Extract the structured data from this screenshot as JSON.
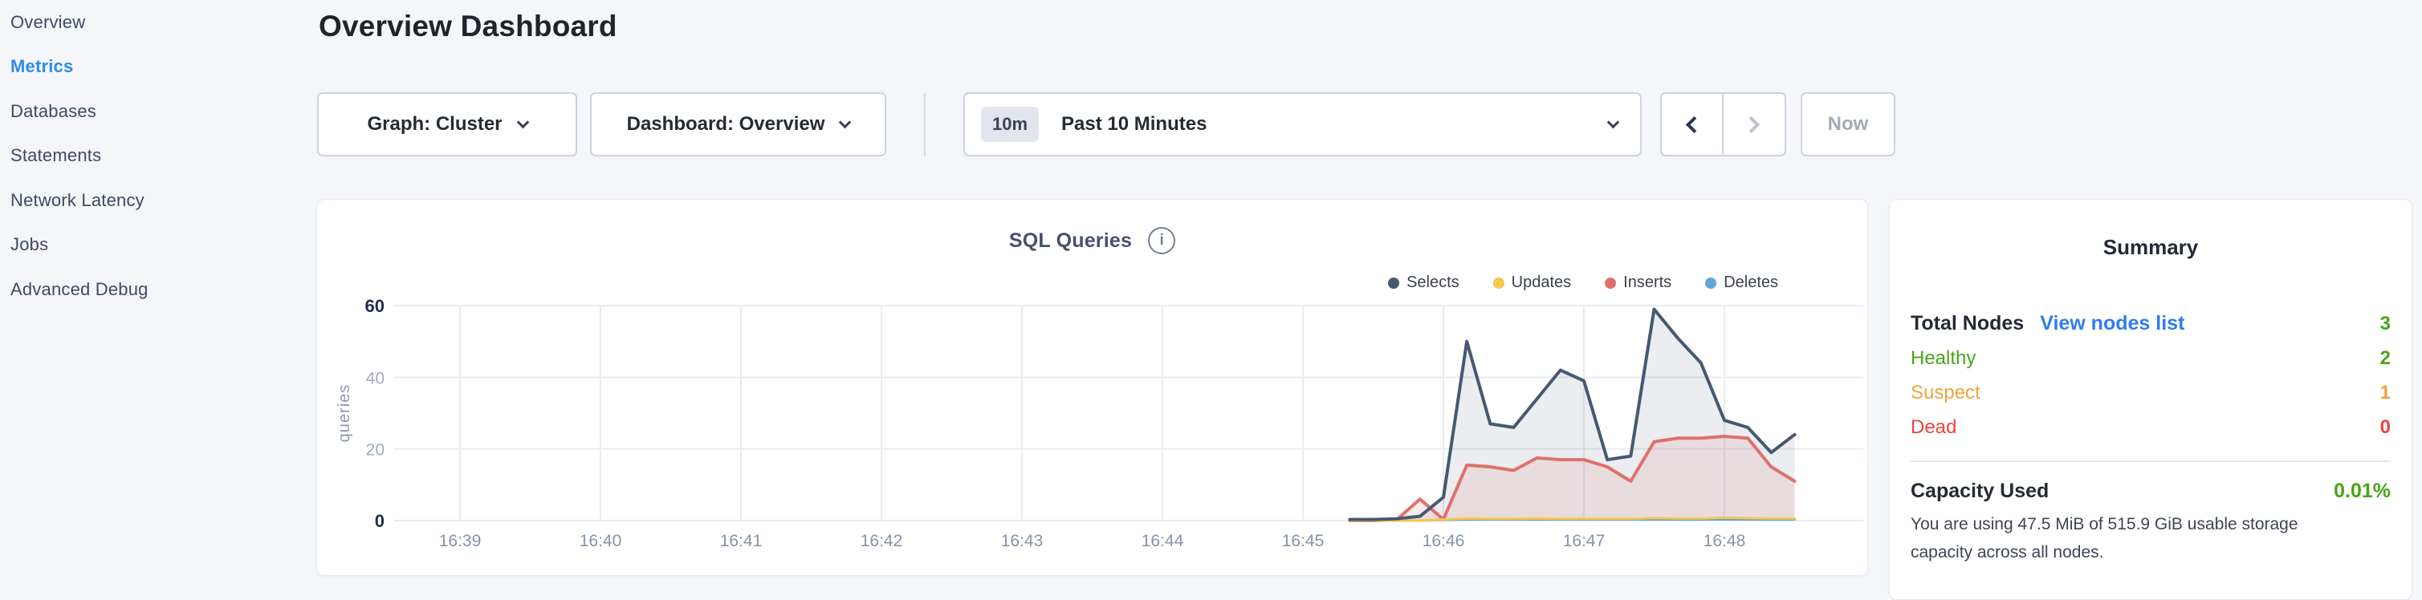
{
  "sidebar": {
    "items": [
      {
        "label": "Overview",
        "active": false
      },
      {
        "label": "Metrics",
        "active": true
      },
      {
        "label": "Databases",
        "active": false
      },
      {
        "label": "Statements",
        "active": false
      },
      {
        "label": "Network Latency",
        "active": false
      },
      {
        "label": "Jobs",
        "active": false
      },
      {
        "label": "Advanced Debug",
        "active": false
      }
    ]
  },
  "header": {
    "title": "Overview Dashboard"
  },
  "toolbar": {
    "graph_label": "Graph: Cluster",
    "dashboard_label": "Dashboard: Overview",
    "time_badge": "10m",
    "time_label": "Past 10 Minutes",
    "now_label": "Now"
  },
  "chart_data": {
    "type": "area",
    "title": "SQL Queries",
    "ylabel": "queries",
    "ylim": [
      0,
      60
    ],
    "grid": true,
    "legend_position": "top-right",
    "y_ticks": [
      {
        "value": 60,
        "major": true
      },
      {
        "value": 40,
        "major": false
      },
      {
        "value": 20,
        "major": false
      },
      {
        "value": 0,
        "major": true
      }
    ],
    "x_tick_labels": [
      "16:39",
      "16:40",
      "16:41",
      "16:42",
      "16:43",
      "16:44",
      "16:45",
      "16:46",
      "16:47",
      "16:48"
    ],
    "data_start_minute": 6.3333,
    "data_step_minute": 0.16667,
    "legend": [
      "Selects",
      "Updates",
      "Inserts",
      "Deletes"
    ],
    "series": [
      {
        "name": "Selects",
        "color": "#475872",
        "fill": "rgba(114,128,148,0.14)",
        "values": [
          0.3,
          0.3,
          0.5,
          1.2,
          6.5,
          50,
          27,
          26,
          34,
          42,
          39,
          17,
          18,
          59,
          51,
          44,
          28,
          26,
          19,
          24
        ]
      },
      {
        "name": "Updates",
        "color": "#f6c74e",
        "fill": "none",
        "values": [
          0,
          0,
          0,
          0,
          0.3,
          0.6,
          0.5,
          0.5,
          0.6,
          0.5,
          0.5,
          0.5,
          0.5,
          0.7,
          0.6,
          0.6,
          0.8,
          0.7,
          0.6,
          0.6
        ]
      },
      {
        "name": "Inserts",
        "color": "#e0706b",
        "fill": "rgba(224,112,107,0.13)",
        "values": [
          0,
          0,
          0.2,
          6,
          0.3,
          15.5,
          15,
          14,
          17.5,
          17,
          17,
          15,
          11,
          22,
          23,
          23,
          23.5,
          23,
          15,
          11
        ]
      },
      {
        "name": "Deletes",
        "color": "#62a7d7",
        "fill": "none",
        "values": [
          0,
          0,
          0,
          0,
          0.2,
          0.3,
          0.3,
          0.3,
          0.3,
          0.3,
          0.3,
          0.3,
          0.3,
          0.3,
          0.3,
          0.3,
          0.3,
          0.3,
          0.3,
          0.3
        ]
      }
    ]
  },
  "summary": {
    "title": "Summary",
    "total_nodes_label": "Total Nodes",
    "view_nodes_link": "View nodes list",
    "total_nodes_value": "3",
    "node_rows": [
      {
        "label": "Healthy",
        "value": "2",
        "color": "#49a417"
      },
      {
        "label": "Suspect",
        "value": "1",
        "color": "#f0a33d"
      },
      {
        "label": "Dead",
        "value": "0",
        "color": "#e8473f"
      }
    ],
    "total_nodes_color": "#49a417",
    "capacity_label": "Capacity Used",
    "capacity_value": "0.01%",
    "capacity_color": "#49a417",
    "capacity_description": "You are using 47.5 MiB of 515.9 GiB usable storage capacity across all nodes."
  },
  "colors": {
    "background": "#f4f6f9",
    "accent_blue": "#2b8bee",
    "link_blue": "#2f7df0",
    "green": "#49a417",
    "orange": "#f0a33d",
    "red": "#e8473f",
    "gridline": "#e8ecf2",
    "axis_major": "#1d2d4e",
    "axis_minor": "#9fadc0",
    "x_tick": "#8494aa"
  }
}
